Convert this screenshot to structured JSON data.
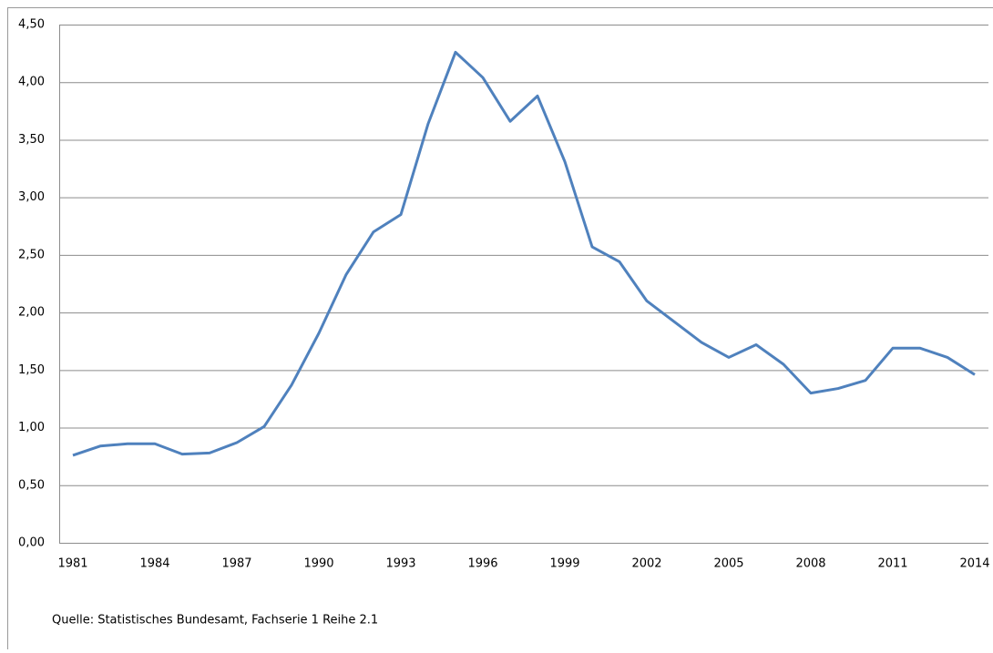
{
  "chart_data": {
    "type": "line",
    "categories": [
      "1981",
      null,
      null,
      "1984",
      null,
      null,
      "1987",
      null,
      null,
      "1990",
      null,
      null,
      "1993",
      null,
      null,
      "1996",
      null,
      null,
      "1999",
      null,
      null,
      "2002",
      null,
      null,
      "2005",
      null,
      null,
      "2008",
      null,
      null,
      "2011",
      null,
      null,
      "2014"
    ],
    "series": [
      {
        "color": "#4f81bd",
        "values": [
          0.76,
          0.84,
          0.86,
          0.86,
          0.77,
          0.78,
          0.87,
          1.01,
          1.37,
          1.82,
          2.33,
          2.7,
          2.85,
          3.64,
          4.26,
          4.04,
          3.66,
          3.88,
          3.31,
          2.57,
          2.44,
          2.1,
          1.92,
          1.74,
          1.61,
          1.72,
          1.55,
          1.3,
          1.34,
          1.41,
          1.69,
          1.69,
          1.61,
          1.46
        ]
      }
    ],
    "ylim": [
      0,
      4.5
    ],
    "yticks": [
      {
        "value": 0,
        "label": "0,00"
      },
      {
        "value": 0.5,
        "label": "0,50"
      },
      {
        "value": 1,
        "label": "1,00"
      },
      {
        "value": 1.5,
        "label": "1,50"
      },
      {
        "value": 2,
        "label": "2,00"
      },
      {
        "value": 2.5,
        "label": "2,50"
      },
      {
        "value": 3,
        "label": "3,00"
      },
      {
        "value": 3.5,
        "label": "3,50"
      },
      {
        "value": 4,
        "label": "4,00"
      },
      {
        "value": 4.5,
        "label": "4,50"
      }
    ],
    "grid": true,
    "source": "Quelle: Statistisches Bundesamt, Fachserie 1 Reihe 2.1"
  }
}
